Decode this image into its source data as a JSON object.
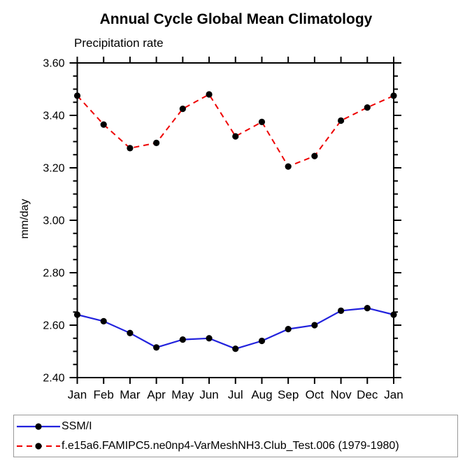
{
  "header": {
    "title": "Annual Cycle Global Mean Climatology",
    "subtitle": "Precipitation rate"
  },
  "chart_data": {
    "type": "line",
    "title": "Annual Cycle Global Mean Climatology",
    "subtitle": "Precipitation rate",
    "xlabel": "",
    "ylabel": "mm/day",
    "categories": [
      "Jan",
      "Feb",
      "Mar",
      "Apr",
      "May",
      "Jun",
      "Jul",
      "Aug",
      "Sep",
      "Oct",
      "Nov",
      "Dec",
      "Jan"
    ],
    "ylim": [
      2.4,
      3.6
    ],
    "ytick_step": 0.2,
    "yminor_step": 0.05,
    "y_tick_labels": [
      "2.40",
      "2.60",
      "2.80",
      "3.00",
      "3.20",
      "3.40",
      "3.60"
    ],
    "grid": false,
    "legend_position": "bottom-left",
    "frame_color": "#000000",
    "series": [
      {
        "name": "SSM/I",
        "line_color": "#2222dd",
        "line_style": "solid",
        "marker": "filled-circle",
        "marker_color": "#000000",
        "values": [
          2.64,
          2.615,
          2.57,
          2.515,
          2.545,
          2.55,
          2.51,
          2.54,
          2.585,
          2.6,
          2.655,
          2.665,
          2.64
        ]
      },
      {
        "name": "f.e15a6.FAMIPC5.ne0np4-VarMeshNH3.Club_Test.006 (1979-1980)",
        "line_color": "#ee0000",
        "line_style": "dashed",
        "marker": "filled-circle",
        "marker_color": "#000000",
        "values": [
          3.475,
          3.365,
          3.275,
          3.295,
          3.425,
          3.48,
          3.32,
          3.375,
          3.205,
          3.245,
          3.38,
          3.43,
          3.475
        ]
      }
    ]
  }
}
